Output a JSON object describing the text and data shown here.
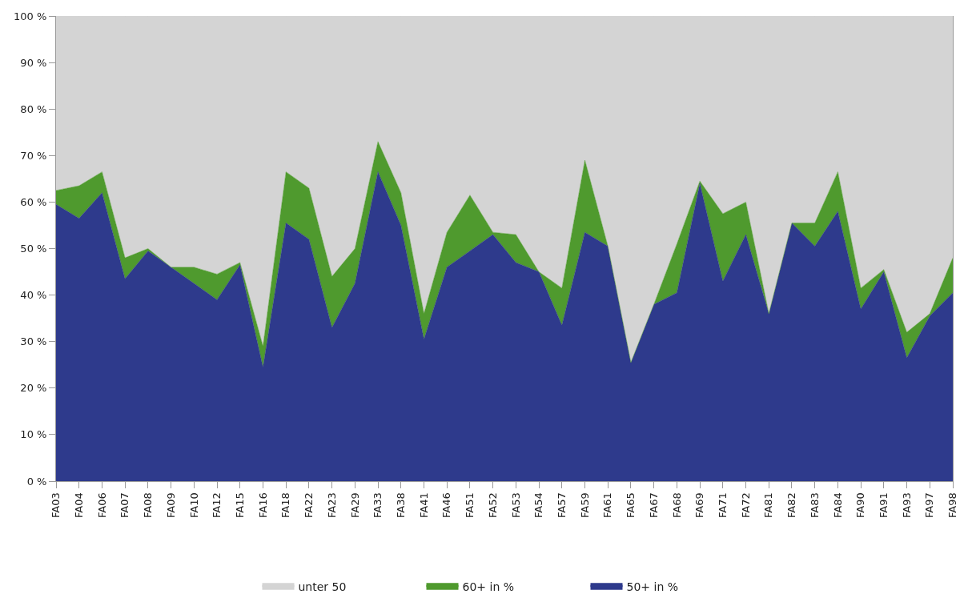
{
  "chart_data": {
    "type": "area",
    "stacked": true,
    "legend": "bottom",
    "marker": "none",
    "categories": [
      "FA03",
      "FA04",
      "FA06",
      "FA07",
      "FA08",
      "FA09",
      "FA10",
      "FA12",
      "FA15",
      "FA16",
      "FA18",
      "FA22",
      "FA23",
      "FA29",
      "FA33",
      "FA38",
      "FA41",
      "FA46",
      "FA51",
      "FA52",
      "FA53",
      "FA54",
      "FA57",
      "FA59",
      "FA61",
      "FA65",
      "FA67",
      "FA68",
      "FA69",
      "FA71",
      "FA72",
      "FA81",
      "FA82",
      "FA83",
      "FA84",
      "FA90",
      "FA91",
      "FA93",
      "FA97",
      "FA98"
    ],
    "series": [
      {
        "name": "50+ in %",
        "color": "#2e3a8c",
        "values": [
          59.5,
          56.5,
          62,
          43.5,
          49.5,
          46,
          42.5,
          39,
          46.5,
          24.5,
          55.5,
          52,
          33,
          42.5,
          66.5,
          55,
          30.5,
          46,
          49.5,
          53,
          47,
          45,
          33.5,
          53.5,
          50.5,
          25.5,
          38,
          40.5,
          64,
          43,
          53,
          36,
          55.5,
          50.5,
          58,
          37,
          45,
          26.5,
          35.5,
          40.5
        ]
      },
      {
        "name": "60+ in %",
        "color": "#4f9a2e",
        "values": [
          3,
          7,
          4.5,
          4.5,
          0.5,
          0,
          3.5,
          5.5,
          0.5,
          4.5,
          11,
          11,
          11,
          7.5,
          6.5,
          7,
          5.5,
          7.5,
          12,
          0.5,
          6,
          0,
          8,
          15.5,
          0,
          0,
          0,
          10.5,
          0.5,
          14.5,
          7,
          0,
          0,
          5,
          8.5,
          4.5,
          0.5,
          5.5,
          0.5,
          7.5
        ]
      },
      {
        "name": "unter 50",
        "color": "#d4d4d4",
        "values": [
          37.5,
          36.5,
          33.5,
          52,
          50,
          54,
          54,
          55.5,
          53,
          71,
          33.5,
          37,
          56,
          50,
          27,
          38,
          64,
          46.5,
          38.5,
          46.5,
          47,
          55,
          58.5,
          31,
          49.5,
          74.5,
          62,
          49,
          35.5,
          42.5,
          40,
          64,
          44.5,
          44.5,
          33.5,
          58.5,
          54.5,
          68,
          64,
          52
        ]
      }
    ],
    "ylim": [
      0,
      100
    ],
    "yticks": [
      {
        "value": 0,
        "label": "0 %"
      },
      {
        "value": 10,
        "label": "10 %"
      },
      {
        "value": 20,
        "label": "20 %"
      },
      {
        "value": 30,
        "label": "30 %"
      },
      {
        "value": 40,
        "label": "40 %"
      },
      {
        "value": 50,
        "label": "50 %"
      },
      {
        "value": 60,
        "label": "60 %"
      },
      {
        "value": 70,
        "label": "70 %"
      },
      {
        "value": 80,
        "label": "80 %"
      },
      {
        "value": 90,
        "label": "90 %"
      },
      {
        "value": 100,
        "label": "100 %"
      }
    ]
  }
}
